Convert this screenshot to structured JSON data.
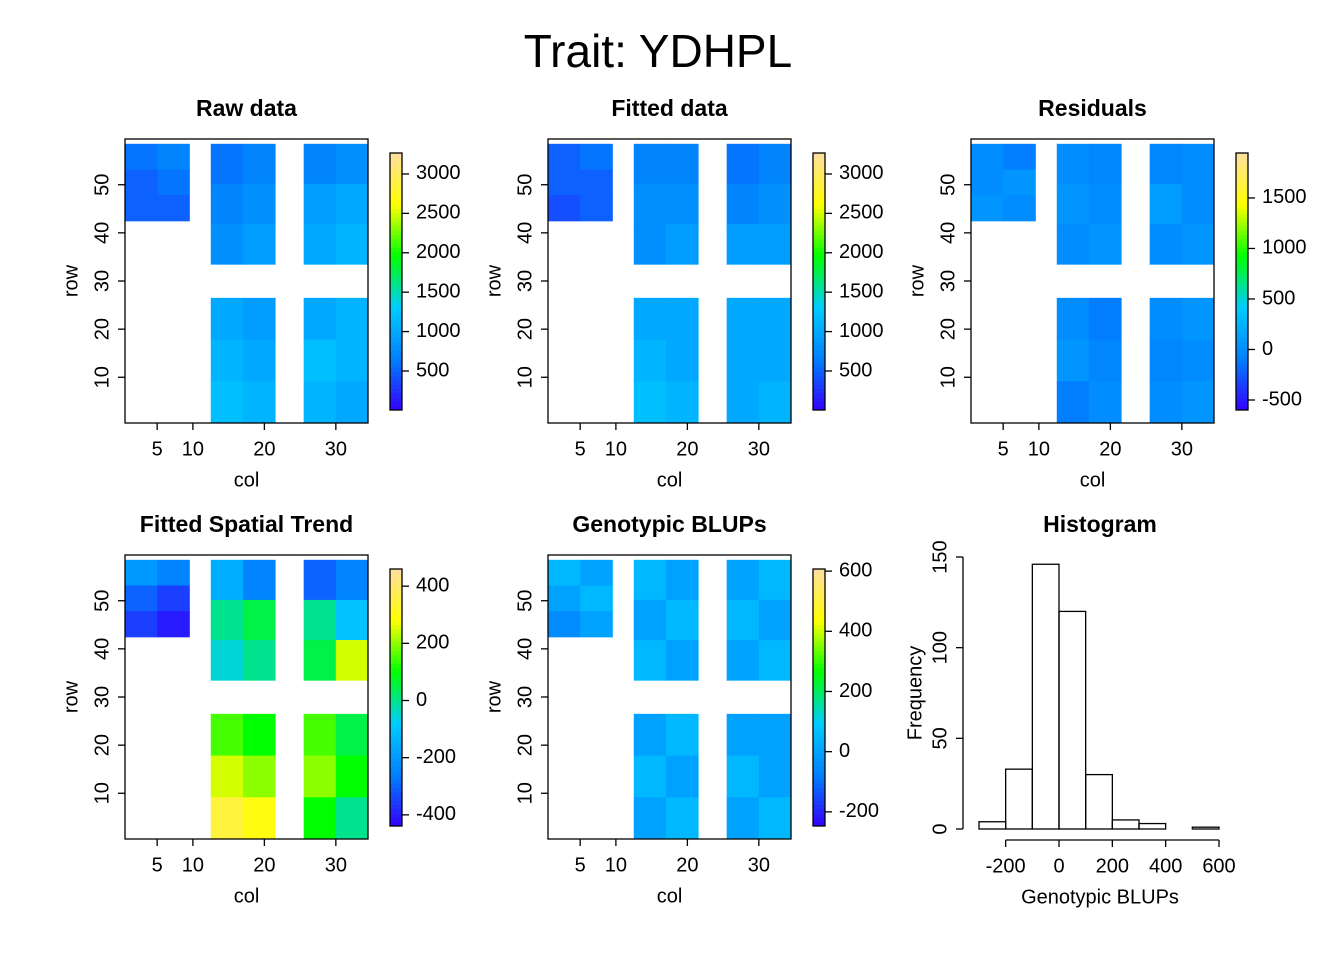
{
  "title": "Trait: YDHPL",
  "chart_data": [
    {
      "type": "heatmap",
      "title": "Raw data",
      "xlabel": "col",
      "ylabel": "row",
      "xlim": [
        0.5,
        34.5
      ],
      "ylim": [
        0.5,
        59.5
      ],
      "xticks": [
        5,
        10,
        20,
        30
      ],
      "yticks": [
        10,
        20,
        30,
        40,
        50
      ],
      "zlim": [
        5,
        3266
      ],
      "zticks": [
        500,
        1000,
        1500,
        2000,
        2500,
        3000
      ],
      "colors": [
        "#3300ff",
        "#0080ff",
        "#00ccff",
        "#00ff00",
        "#ffff00",
        "#ffe0a0"
      ],
      "blocks": [
        {
          "x": [
            0.5,
            9.5
          ],
          "y": [
            42.5,
            58.5
          ],
          "values": [
            [
              600,
              700
            ],
            [
              500,
              600
            ],
            [
              500,
              500
            ]
          ]
        },
        {
          "x": [
            12.5,
            21.5
          ],
          "y": [
            33.5,
            58.5
          ],
          "values": [
            [
              600,
              700
            ],
            [
              700,
              800
            ],
            [
              800,
              900
            ]
          ]
        },
        {
          "x": [
            25.5,
            34.5
          ],
          "y": [
            33.5,
            58.5
          ],
          "values": [
            [
              700,
              800
            ],
            [
              900,
              1000
            ],
            [
              1000,
              1100
            ]
          ]
        },
        {
          "x": [
            12.5,
            21.5
          ],
          "y": [
            0.5,
            26.5
          ],
          "values": [
            [
              1000,
              900
            ],
            [
              1100,
              1000
            ],
            [
              1200,
              1100
            ]
          ]
        },
        {
          "x": [
            25.5,
            34.5
          ],
          "y": [
            0.5,
            26.5
          ],
          "values": [
            [
              1000,
              1100
            ],
            [
              1200,
              1100
            ],
            [
              1100,
              1000
            ]
          ]
        }
      ]
    },
    {
      "type": "heatmap",
      "title": "Fitted data",
      "xlabel": "col",
      "ylabel": "row",
      "xlim": [
        0.5,
        34.5
      ],
      "ylim": [
        0.5,
        59.5
      ],
      "xticks": [
        5,
        10,
        20,
        30
      ],
      "yticks": [
        10,
        20,
        30,
        40,
        50
      ],
      "zlim": [
        5,
        3266
      ],
      "zticks": [
        500,
        1000,
        1500,
        2000,
        2500,
        3000
      ],
      "colors": [
        "#3300ff",
        "#0080ff",
        "#00ccff",
        "#00ff00",
        "#ffff00",
        "#ffe0a0"
      ],
      "blocks": [
        {
          "x": [
            0.5,
            9.5
          ],
          "y": [
            42.5,
            58.5
          ],
          "values": [
            [
              500,
              600
            ],
            [
              500,
              500
            ],
            [
              400,
              500
            ]
          ]
        },
        {
          "x": [
            12.5,
            21.5
          ],
          "y": [
            33.5,
            58.5
          ],
          "values": [
            [
              700,
              700
            ],
            [
              800,
              800
            ],
            [
              800,
              900
            ]
          ]
        },
        {
          "x": [
            25.5,
            34.5
          ],
          "y": [
            33.5,
            58.5
          ],
          "values": [
            [
              600,
              700
            ],
            [
              700,
              800
            ],
            [
              900,
              900
            ]
          ]
        },
        {
          "x": [
            12.5,
            21.5
          ],
          "y": [
            0.5,
            26.5
          ],
          "values": [
            [
              1000,
              1000
            ],
            [
              1100,
              1000
            ],
            [
              1200,
              1100
            ]
          ]
        },
        {
          "x": [
            25.5,
            34.5
          ],
          "y": [
            0.5,
            26.5
          ],
          "values": [
            [
              1000,
              1000
            ],
            [
              1000,
              1000
            ],
            [
              1000,
              1100
            ]
          ]
        }
      ]
    },
    {
      "type": "heatmap",
      "title": "Residuals",
      "xlabel": "col",
      "ylabel": "row",
      "xlim": [
        0.5,
        34.5
      ],
      "ylim": [
        0.5,
        59.5
      ],
      "xticks": [
        5,
        10,
        20,
        30
      ],
      "yticks": [
        10,
        20,
        30,
        40,
        50
      ],
      "zlim": [
        -599,
        1945
      ],
      "zticks": [
        -500,
        0,
        500,
        1000,
        1500
      ],
      "colors": [
        "#3300ff",
        "#0080ff",
        "#00ccff",
        "#00ff00",
        "#ffff00",
        "#ffe0a0"
      ],
      "blocks": [
        {
          "x": [
            0.5,
            9.5
          ],
          "y": [
            42.5,
            58.5
          ],
          "values": [
            [
              0,
              -100
            ],
            [
              0,
              50
            ],
            [
              50,
              0
            ]
          ]
        },
        {
          "x": [
            12.5,
            21.5
          ],
          "y": [
            33.5,
            58.5
          ],
          "values": [
            [
              0,
              -50
            ],
            [
              50,
              0
            ],
            [
              0,
              50
            ]
          ]
        },
        {
          "x": [
            25.5,
            34.5
          ],
          "y": [
            33.5,
            58.5
          ],
          "values": [
            [
              -50,
              0
            ],
            [
              100,
              0
            ],
            [
              0,
              50
            ]
          ]
        },
        {
          "x": [
            12.5,
            21.5
          ],
          "y": [
            0.5,
            26.5
          ],
          "values": [
            [
              0,
              -100
            ],
            [
              50,
              -50
            ],
            [
              -100,
              0
            ]
          ]
        },
        {
          "x": [
            25.5,
            34.5
          ],
          "y": [
            0.5,
            26.5
          ],
          "values": [
            [
              0,
              50
            ],
            [
              -50,
              0
            ],
            [
              0,
              50
            ]
          ]
        }
      ]
    },
    {
      "type": "heatmap",
      "title": "Fitted Spatial Trend",
      "xlabel": "col",
      "ylabel": "row",
      "xlim": [
        0.5,
        34.5
      ],
      "ylim": [
        0.5,
        59.5
      ],
      "xticks": [
        5,
        10,
        20,
        30
      ],
      "yticks": [
        10,
        20,
        30,
        40,
        50
      ],
      "zlim": [
        -439,
        460
      ],
      "zticks": [
        -400,
        -200,
        0,
        200,
        400
      ],
      "colors": [
        "#3300ff",
        "#0080ff",
        "#00ccff",
        "#00ff00",
        "#ffff00",
        "#ffe0a0"
      ],
      "blocks": [
        {
          "x": [
            0.5,
            9.5
          ],
          "y": [
            42.5,
            58.5
          ],
          "values": [
            [
              -200,
              -250
            ],
            [
              -300,
              -350
            ],
            [
              -350,
              -400
            ]
          ]
        },
        {
          "x": [
            12.5,
            21.5
          ],
          "y": [
            33.5,
            58.5
          ],
          "values": [
            [
              -150,
              -250
            ],
            [
              0,
              50
            ],
            [
              -50,
              0
            ]
          ]
        },
        {
          "x": [
            25.5,
            34.5
          ],
          "y": [
            33.5,
            58.5
          ],
          "values": [
            [
              -300,
              -250
            ],
            [
              0,
              -100
            ],
            [
              50,
              250
            ]
          ]
        },
        {
          "x": [
            12.5,
            21.5
          ],
          "y": [
            0.5,
            26.5
          ],
          "values": [
            [
              150,
              100
            ],
            [
              250,
              200
            ],
            [
              350,
              300
            ]
          ]
        },
        {
          "x": [
            25.5,
            34.5
          ],
          "y": [
            0.5,
            26.5
          ],
          "values": [
            [
              150,
              50
            ],
            [
              200,
              100
            ],
            [
              100,
              0
            ]
          ]
        }
      ]
    },
    {
      "type": "heatmap",
      "title": "Genotypic BLUPs",
      "xlabel": "col",
      "ylabel": "row",
      "xlim": [
        0.5,
        34.5
      ],
      "ylim": [
        0.5,
        59.5
      ],
      "xticks": [
        5,
        10,
        20,
        30
      ],
      "yticks": [
        10,
        20,
        30,
        40,
        50
      ],
      "zlim": [
        -247,
        607
      ],
      "zticks": [
        -200,
        0,
        200,
        400,
        600
      ],
      "colors": [
        "#3300ff",
        "#0080ff",
        "#00ccff",
        "#00ff00",
        "#ffff00",
        "#ffe0a0"
      ],
      "blocks": [
        {
          "x": [
            0.5,
            9.5
          ],
          "y": [
            42.5,
            58.5
          ],
          "values": [
            [
              50,
              0
            ],
            [
              0,
              50
            ],
            [
              -50,
              0
            ]
          ]
        },
        {
          "x": [
            12.5,
            21.5
          ],
          "y": [
            33.5,
            58.5
          ],
          "values": [
            [
              50,
              0
            ],
            [
              0,
              50
            ],
            [
              50,
              0
            ]
          ]
        },
        {
          "x": [
            25.5,
            34.5
          ],
          "y": [
            33.5,
            58.5
          ],
          "values": [
            [
              0,
              50
            ],
            [
              50,
              0
            ],
            [
              0,
              50
            ]
          ]
        },
        {
          "x": [
            12.5,
            21.5
          ],
          "y": [
            0.5,
            26.5
          ],
          "values": [
            [
              0,
              50
            ],
            [
              50,
              0
            ],
            [
              0,
              50
            ]
          ]
        },
        {
          "x": [
            25.5,
            34.5
          ],
          "y": [
            0.5,
            26.5
          ],
          "values": [
            [
              0,
              0
            ],
            [
              50,
              0
            ],
            [
              0,
              50
            ]
          ]
        }
      ]
    },
    {
      "type": "histogram",
      "title": "Histogram",
      "xlabel": "Genotypic BLUPs",
      "ylabel": "Frequency",
      "bins": [
        -300,
        -200,
        -100,
        0,
        100,
        200,
        300,
        400,
        500,
        600
      ],
      "counts": [
        4,
        33,
        146,
        120,
        30,
        5,
        3,
        0,
        1
      ],
      "xlim": [
        -300,
        600
      ],
      "ylim": [
        0,
        150
      ],
      "xticks": [
        -200,
        0,
        200,
        400,
        600
      ],
      "yticks": [
        0,
        50,
        100,
        150
      ]
    }
  ]
}
